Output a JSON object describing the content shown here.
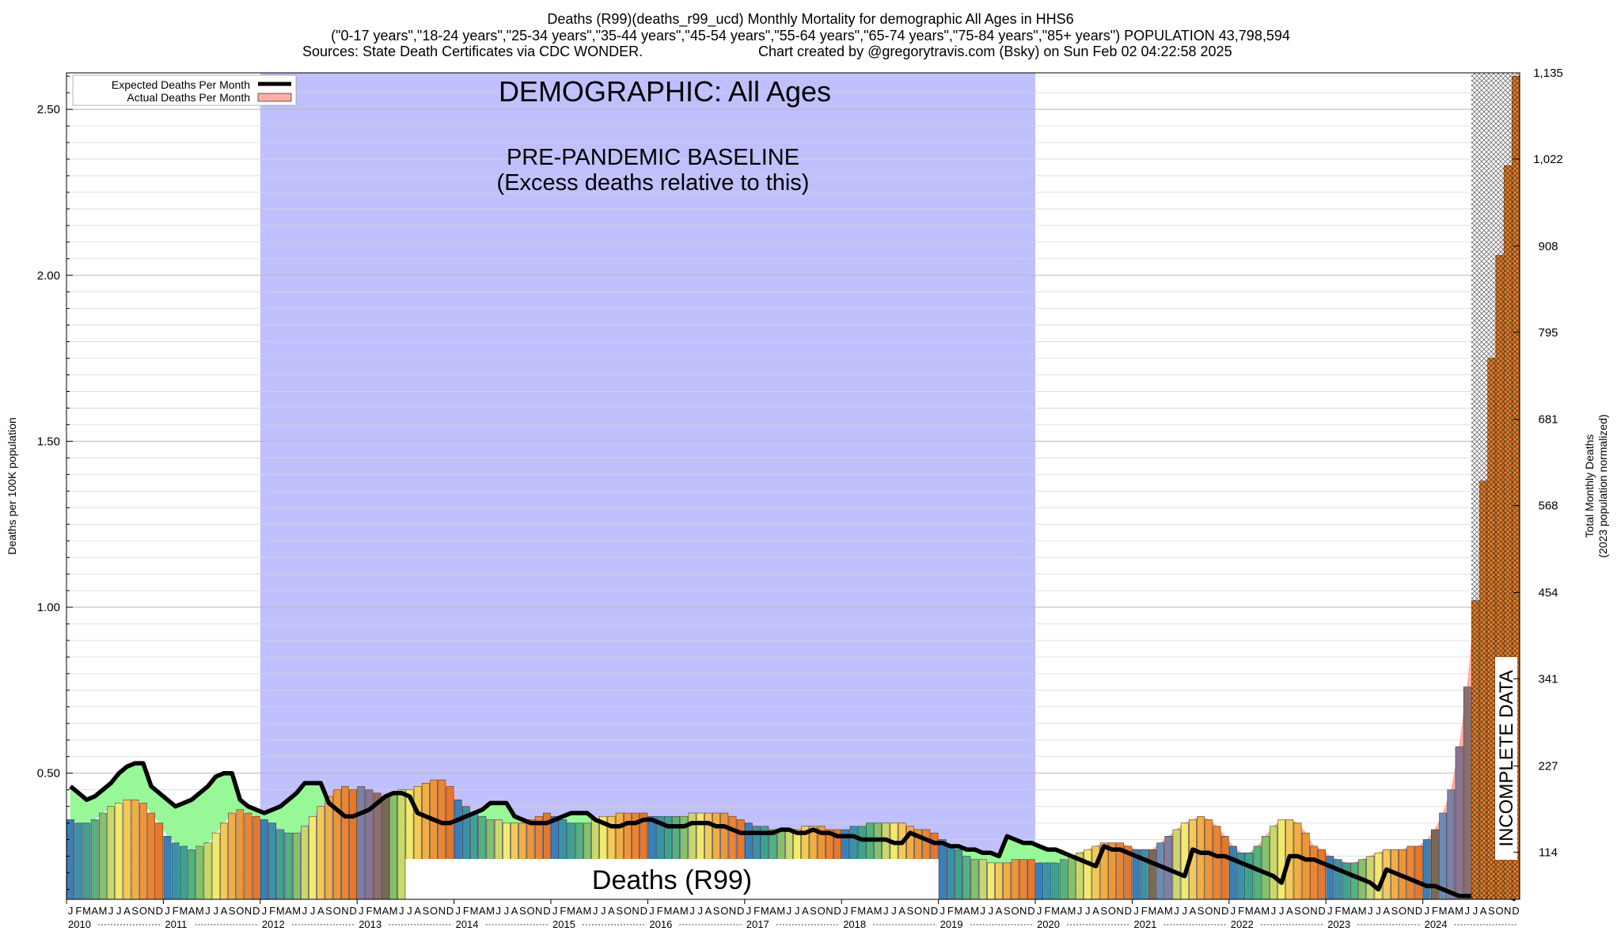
{
  "header": {
    "line1": "Deaths (R99)(deaths_r99_ucd) Monthly Mortality for demographic All Ages in HHS6",
    "line2": "(\"0-17 years\",\"18-24 years\",\"25-34 years\",\"35-44 years\",\"45-54 years\",\"55-64 years\",\"65-74 years\",\"75-84 years\",\"85+ years\") POPULATION 43,798,594",
    "line3_sources": "Sources: State Death Certificates via CDC WONDER.",
    "line3_credit": "Chart created by @gregorytravis.com (Bsky) on Sun Feb 02 04:22:58 2025"
  },
  "chart_data": {
    "type": "bar",
    "ylabel": "Deaths per 100K population",
    "y2label_line1": "Total Monthly Deaths",
    "y2label_line2": "(2023 population normalized)",
    "ylim": [
      0.12,
      2.61
    ],
    "yticks": [
      "0.50",
      "1.00",
      "1.50",
      "2.00",
      "2.50"
    ],
    "y2ticks": [
      "114",
      "227",
      "341",
      "454",
      "568",
      "681",
      "795",
      "908",
      "1,022",
      "1,135"
    ],
    "legend": {
      "expected": "Expected Deaths Per Month",
      "actual": "Actual Deaths Per Month",
      "position": "top-left"
    },
    "demographic_label": "DEMOGRAPHIC: All Ages",
    "baseline_label_line1": "PRE-PANDEMIC BASELINE",
    "baseline_label_line2": "(Excess deaths relative to this)",
    "baseline_range_years": [
      2012,
      2019
    ],
    "cause_label": "Deaths (R99)",
    "incomplete_label": "INCOMPLETE DATA",
    "month_letters": [
      "J",
      "F",
      "M",
      "A",
      "M",
      "J",
      "J",
      "A",
      "S",
      "O",
      "N",
      "D"
    ],
    "years": [
      "2010",
      "2011",
      "2012",
      "2013",
      "2014",
      "2015",
      "2016",
      "2017",
      "2018",
      "2019",
      "2020",
      "2021",
      "2022",
      "2023",
      "2024"
    ],
    "actual": [
      [
        0.36,
        0.35,
        0.35,
        0.36,
        0.38,
        0.4,
        0.41,
        0.42,
        0.42,
        0.41,
        0.38,
        0.35
      ],
      [
        0.31,
        0.29,
        0.28,
        0.27,
        0.28,
        0.29,
        0.32,
        0.35,
        0.38,
        0.39,
        0.38,
        0.37
      ],
      [
        0.36,
        0.35,
        0.33,
        0.32,
        0.32,
        0.34,
        0.37,
        0.4,
        0.43,
        0.45,
        0.46,
        0.45
      ],
      [
        0.46,
        0.45,
        0.44,
        0.43,
        0.44,
        0.45,
        0.45,
        0.46,
        0.47,
        0.48,
        0.48,
        0.46
      ],
      [
        0.42,
        0.4,
        0.38,
        0.37,
        0.36,
        0.36,
        0.35,
        0.35,
        0.35,
        0.36,
        0.37,
        0.38
      ],
      [
        0.37,
        0.36,
        0.35,
        0.35,
        0.35,
        0.36,
        0.37,
        0.37,
        0.38,
        0.38,
        0.38,
        0.38
      ],
      [
        0.37,
        0.37,
        0.37,
        0.37,
        0.37,
        0.38,
        0.38,
        0.38,
        0.38,
        0.38,
        0.37,
        0.36
      ],
      [
        0.35,
        0.34,
        0.34,
        0.33,
        0.33,
        0.33,
        0.33,
        0.34,
        0.34,
        0.34,
        0.33,
        0.33
      ],
      [
        0.33,
        0.34,
        0.34,
        0.35,
        0.35,
        0.35,
        0.35,
        0.35,
        0.34,
        0.33,
        0.33,
        0.32
      ],
      [
        0.3,
        0.28,
        0.27,
        0.25,
        0.24,
        0.24,
        0.23,
        0.23,
        0.23,
        0.24,
        0.24,
        0.24
      ],
      [
        0.23,
        0.23,
        0.23,
        0.24,
        0.25,
        0.26,
        0.27,
        0.28,
        0.29,
        0.29,
        0.29,
        0.28
      ],
      [
        0.27,
        0.27,
        0.27,
        0.29,
        0.31,
        0.33,
        0.35,
        0.36,
        0.37,
        0.36,
        0.34,
        0.31
      ],
      [
        0.28,
        0.26,
        0.26,
        0.28,
        0.31,
        0.34,
        0.36,
        0.36,
        0.35,
        0.32,
        0.28,
        0.27
      ],
      [
        0.25,
        0.24,
        0.23,
        0.23,
        0.24,
        0.25,
        0.26,
        0.27,
        0.27,
        0.27,
        0.28,
        0.28
      ],
      [
        0.3,
        0.33,
        0.38,
        0.45,
        0.58,
        0.76,
        1.02,
        1.38,
        1.75,
        2.06,
        2.33,
        2.6
      ]
    ],
    "expected": [
      [
        0.46,
        0.44,
        0.42,
        0.43,
        0.45,
        0.47,
        0.5,
        0.52,
        0.53,
        0.53,
        0.46,
        0.44
      ],
      [
        0.42,
        0.4,
        0.41,
        0.42,
        0.44,
        0.46,
        0.49,
        0.5,
        0.5,
        0.42,
        0.4,
        0.39
      ],
      [
        0.38,
        0.39,
        0.4,
        0.42,
        0.44,
        0.47,
        0.47,
        0.47,
        0.41,
        0.39,
        0.37,
        0.37
      ],
      [
        0.38,
        0.39,
        0.41,
        0.43,
        0.44,
        0.44,
        0.43,
        0.38,
        0.37,
        0.36,
        0.35,
        0.35
      ],
      [
        0.36,
        0.37,
        0.38,
        0.39,
        0.41,
        0.41,
        0.41,
        0.37,
        0.36,
        0.35,
        0.35,
        0.35
      ],
      [
        0.36,
        0.37,
        0.38,
        0.38,
        0.38,
        0.36,
        0.35,
        0.34,
        0.34,
        0.35,
        0.35,
        0.36
      ],
      [
        0.36,
        0.35,
        0.34,
        0.34,
        0.34,
        0.35,
        0.35,
        0.35,
        0.34,
        0.34,
        0.33,
        0.32
      ],
      [
        0.32,
        0.32,
        0.32,
        0.32,
        0.33,
        0.33,
        0.32,
        0.32,
        0.33,
        0.32,
        0.32,
        0.31
      ],
      [
        0.31,
        0.31,
        0.3,
        0.3,
        0.3,
        0.3,
        0.29,
        0.29,
        0.32,
        0.31,
        0.3,
        0.29
      ],
      [
        0.29,
        0.28,
        0.28,
        0.27,
        0.27,
        0.26,
        0.26,
        0.25,
        0.31,
        0.3,
        0.29,
        0.29
      ],
      [
        0.28,
        0.27,
        0.27,
        0.26,
        0.25,
        0.24,
        0.23,
        0.22,
        0.28,
        0.27,
        0.27,
        0.26
      ],
      [
        0.25,
        0.24,
        0.23,
        0.22,
        0.21,
        0.2,
        0.19,
        0.27,
        0.26,
        0.26,
        0.25,
        0.25
      ],
      [
        0.24,
        0.23,
        0.22,
        0.21,
        0.2,
        0.19,
        0.17,
        0.25,
        0.25,
        0.24,
        0.24,
        0.23
      ],
      [
        0.22,
        0.21,
        0.2,
        0.19,
        0.18,
        0.17,
        0.15,
        0.21,
        0.2,
        0.19,
        0.18,
        0.17
      ],
      [
        0.16,
        0.16,
        0.15,
        0.14,
        0.13,
        0.13,
        0.13,
        0.13,
        0.13,
        0.13,
        0.13,
        0.12
      ]
    ],
    "incomplete_from_month_index": 174,
    "colors": {
      "baseline_band": "#c0c0ff",
      "excess_fill": "#ffb0a6",
      "deficit_fill": "#98f898",
      "expected_line": "#000000",
      "month_palette": [
        "#3b7fb8",
        "#3a92a8",
        "#3fa28f",
        "#53b27f",
        "#83c26b",
        "#c9d86a",
        "#f2ea6e",
        "#f3ca5a",
        "#f0ae45",
        "#ed9638",
        "#eb8433",
        "#e5782c"
      ],
      "overcast_palette": [
        "#6c8cb8",
        "#7d7fa4",
        "#8a7591",
        "#8d6e6e",
        "#7a6a55"
      ]
    }
  }
}
